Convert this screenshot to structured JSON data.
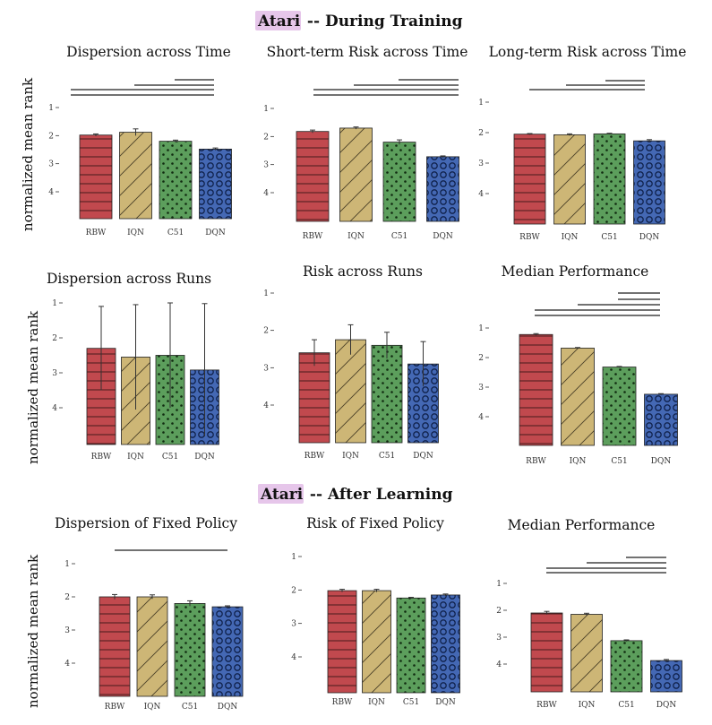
{
  "sections": [
    {
      "highlight": "Atari",
      "rest": " -- During Training"
    },
    {
      "highlight": "Atari",
      "rest": " -- After Learning"
    }
  ],
  "y_axis_label": "normalized mean rank",
  "colors": {
    "RBW": "#c1494e",
    "IQN": "#cdb676",
    "C51": "#5c9e5c",
    "DQN": "#4468b4"
  },
  "chart_data": [
    {
      "type": "bar",
      "title": "Dispersion across Time",
      "categories": [
        "RBW",
        "IQN",
        "C51",
        "DQN"
      ],
      "values": [
        1.98,
        1.88,
        2.2,
        2.48
      ],
      "errors": [
        0.04,
        0.12,
        0.04,
        0.04
      ],
      "yticks": [
        1,
        2,
        3,
        4
      ],
      "ylim": [
        1,
        5
      ]
    },
    {
      "type": "bar",
      "title": "Short-term Risk across Time",
      "categories": [
        "RBW",
        "IQN",
        "C51",
        "DQN"
      ],
      "values": [
        1.82,
        1.7,
        2.2,
        2.72
      ],
      "errors": [
        0.05,
        0.04,
        0.08,
        0.03
      ],
      "yticks": [
        1,
        2,
        3,
        4
      ],
      "ylim": [
        1,
        5
      ]
    },
    {
      "type": "bar",
      "title": "Long-term Risk across Time",
      "categories": [
        "RBW",
        "IQN",
        "C51",
        "DQN"
      ],
      "values": [
        2.05,
        2.07,
        2.04,
        2.27
      ],
      "errors": [
        0.02,
        0.03,
        0.02,
        0.04
      ],
      "yticks": [
        1,
        2,
        3,
        4
      ],
      "ylim": [
        1,
        5
      ]
    },
    {
      "type": "bar",
      "title": "Dispersion across Runs",
      "categories": [
        "RBW",
        "IQN",
        "C51",
        "DQN"
      ],
      "values": [
        2.3,
        2.55,
        2.5,
        2.92
      ],
      "errors": [
        1.2,
        1.5,
        1.5,
        1.9
      ],
      "yticks": [
        1,
        2,
        3,
        4
      ],
      "ylim": [
        1,
        5
      ]
    },
    {
      "type": "bar",
      "title": "Risk across Runs",
      "categories": [
        "RBW",
        "IQN",
        "C51",
        "DQN"
      ],
      "values": [
        2.6,
        2.25,
        2.4,
        2.9
      ],
      "errors": [
        0.35,
        0.4,
        0.35,
        0.6
      ],
      "yticks": [
        1,
        2,
        3,
        4
      ],
      "ylim": [
        1,
        5
      ]
    },
    {
      "type": "bar",
      "title": "Median Performance",
      "categories": [
        "RBW",
        "IQN",
        "C51",
        "DQN"
      ],
      "values": [
        1.22,
        1.68,
        2.32,
        3.24
      ],
      "errors": [
        0.03,
        0.02,
        0.02,
        0.02
      ],
      "yticks": [
        1,
        2,
        3,
        4
      ],
      "ylim": [
        1,
        5
      ]
    },
    {
      "type": "bar",
      "title": "Dispersion of Fixed Policy",
      "categories": [
        "RBW",
        "IQN",
        "C51",
        "DQN"
      ],
      "values": [
        2,
        2,
        2.2,
        2.3
      ],
      "errors": [
        0.07,
        0.06,
        0.08,
        0.03
      ],
      "yticks": [
        1,
        2,
        3,
        4
      ],
      "ylim": [
        1,
        5
      ]
    },
    {
      "type": "bar",
      "title": "Risk of Fixed Policy",
      "categories": [
        "RBW",
        "IQN",
        "C51",
        "DQN"
      ],
      "values": [
        2.02,
        2.02,
        2.24,
        2.15
      ],
      "errors": [
        0.04,
        0.04,
        0.02,
        0.03
      ],
      "yticks": [
        1,
        2,
        3,
        4
      ],
      "ylim": [
        1,
        5
      ]
    },
    {
      "type": "bar",
      "title": "Median Performance",
      "categories": [
        "RBW",
        "IQN",
        "C51",
        "DQN"
      ],
      "values": [
        2.1,
        2.15,
        3.13,
        3.87
      ],
      "errors": [
        0.06,
        0.04,
        0.03,
        0.04
      ],
      "yticks": [
        1,
        2,
        3,
        4
      ],
      "ylim": [
        1,
        5
      ]
    }
  ]
}
